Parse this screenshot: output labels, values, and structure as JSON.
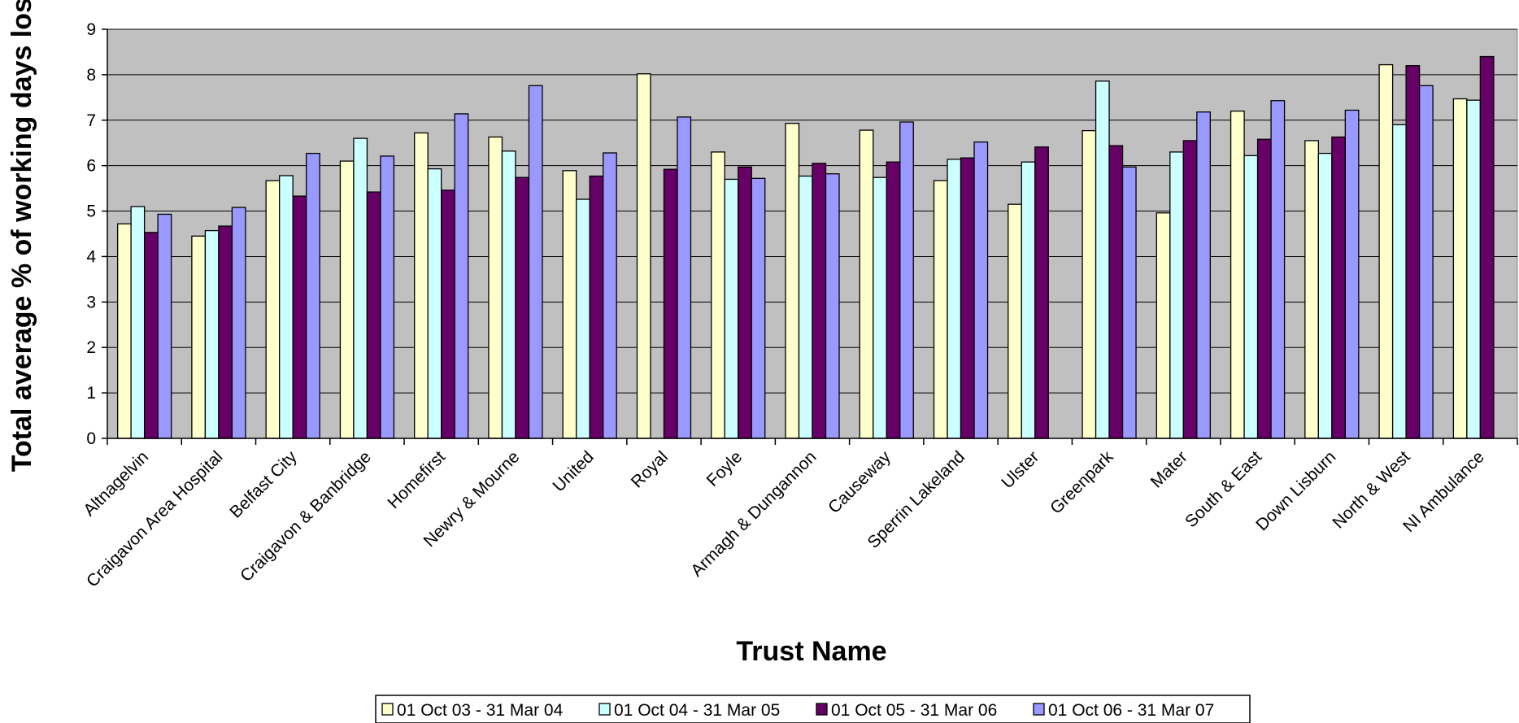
{
  "chart_data": {
    "type": "bar",
    "title": "",
    "xlabel": "Trust Name",
    "ylabel": "Total average % of working days lost",
    "ylim": [
      0,
      9
    ],
    "yticks": [
      "0",
      "1",
      "2",
      "3",
      "4",
      "5",
      "6",
      "7",
      "8",
      "9"
    ],
    "grid": true,
    "legend_position": "bottom",
    "plot_background": "#c0c0c0",
    "categories": [
      "Altnagelvin",
      "Craigavon Area Hospital",
      "Belfast City",
      "Craigavon & Banbridge",
      "Homefirst",
      "Newry & Mourne",
      "United",
      "Royal",
      "Foyle",
      "Armagh & Dungannon",
      "Causeway",
      "Sperrin Lakeland",
      "Ulster",
      "Greenpark",
      "Mater",
      "South & East",
      "Down Lisburn",
      "North & West",
      "NI Ambulance"
    ],
    "series": [
      {
        "name": "01 Oct 03 - 31 Mar 04",
        "color": "#ffffcc",
        "values": [
          4.72,
          4.45,
          5.67,
          6.1,
          6.72,
          6.63,
          5.89,
          8.02,
          6.3,
          6.93,
          6.78,
          5.67,
          5.15,
          6.77,
          4.96,
          7.2,
          6.55,
          8.22,
          7.47
        ]
      },
      {
        "name": "01 Oct 04 - 31 Mar 05",
        "color": "#ccffff",
        "values": [
          5.1,
          4.57,
          5.78,
          6.6,
          5.93,
          6.32,
          5.26,
          null,
          5.7,
          5.77,
          5.74,
          6.14,
          6.08,
          7.86,
          6.3,
          6.22,
          6.27,
          6.9,
          7.44
        ]
      },
      {
        "name": "01 Oct 05 - 31 Mar 06",
        "color": "#660066",
        "values": [
          4.53,
          4.67,
          5.33,
          5.42,
          5.46,
          5.74,
          5.77,
          5.92,
          5.97,
          6.05,
          6.08,
          6.17,
          6.41,
          6.44,
          6.55,
          6.58,
          6.63,
          8.2,
          8.4
        ]
      },
      {
        "name": "01 Oct 06 - 31 Mar 07",
        "color": "#9999ff",
        "values": [
          4.93,
          5.08,
          6.27,
          6.21,
          7.14,
          7.76,
          6.28,
          7.07,
          5.72,
          5.82,
          6.96,
          6.52,
          null,
          5.97,
          7.18,
          7.43,
          7.22,
          7.76,
          null
        ]
      }
    ]
  }
}
